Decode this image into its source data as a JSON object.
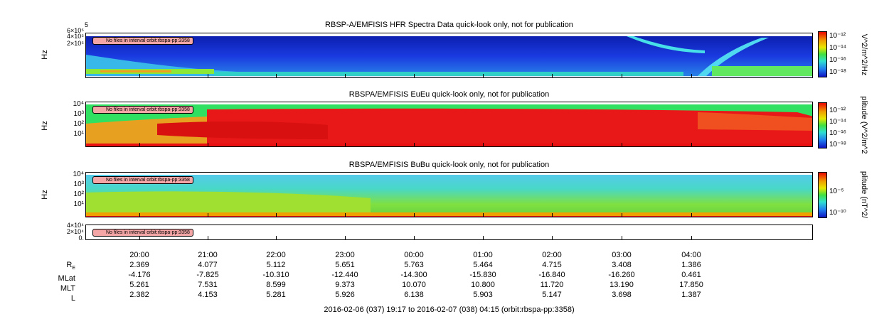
{
  "colors": {
    "spec_low": "#1a1ab0",
    "spec_mid": "#36e8c8",
    "spec_high": "#e81010",
    "notice_bg": "#f4a6a6"
  },
  "notice_text": "No files in interval orbit:rbspa-pp:3358",
  "chart_data": [
    {
      "type": "heatmap",
      "title": "RBSP-A/EMFISIS  HFR Spectra Data quick-look only, not for publication",
      "ylabel": "Hz",
      "ytick_labels": [
        "5",
        "6×10⁵",
        "4×10⁵",
        "2×10⁵"
      ],
      "colorbar_label": "V^2/m^2/Hz",
      "colorbar_ticks": [
        "10⁻¹²",
        "10⁻¹⁴",
        "10⁻¹⁶",
        "10⁻¹⁸"
      ],
      "notice": "No files in interval orbit:rbspa-pp:3358"
    },
    {
      "type": "heatmap",
      "title": "RBSPA/EMFISIS  EuEu quick-look only, not for publication",
      "ylabel": "Hz",
      "ytick_labels": [
        "10⁴",
        "10³",
        "10²",
        "10¹"
      ],
      "colorbar_label": "plitude (V^2/m^2",
      "colorbar_ticks": [
        "10⁻¹²",
        "10⁻¹⁴",
        "10⁻¹⁶",
        "10⁻¹⁸"
      ],
      "notice": "No files in interval orbit:rbspa-pp:3358"
    },
    {
      "type": "heatmap",
      "title": "RBSPA/EMFISIS  BuBu quick-look only, not for publication",
      "ylabel": "Hz",
      "ytick_labels": [
        "10⁴",
        "10³",
        "10²",
        "10¹"
      ],
      "colorbar_label": "plitude (nT^2/",
      "colorbar_ticks": [
        "10⁻⁵",
        "10⁻¹⁰"
      ],
      "notice": "No files in interval orbit:rbspa-pp:3358"
    },
    {
      "type": "line",
      "title": "",
      "ytick_labels": [
        "4×10⁴",
        "2×10⁴",
        "0."
      ],
      "notice": "No files in interval orbit:rbspa-pp:3358"
    }
  ],
  "ephemeris": {
    "times": [
      "20:00",
      "21:00",
      "22:00",
      "23:00",
      "00:00",
      "01:00",
      "02:00",
      "03:00",
      "04:00"
    ],
    "rows": [
      {
        "label": "R",
        "sub": "E",
        "values": [
          "2.369",
          "4.077",
          "5.112",
          "5.651",
          "5.763",
          "5.464",
          "4.715",
          "3.408",
          "1.386"
        ]
      },
      {
        "label": "MLat",
        "sub": "",
        "values": [
          "-4.176",
          "-7.825",
          "-10.310",
          "-12.440",
          "-14.300",
          "-15.830",
          "-16.840",
          "-16.260",
          "0.461"
        ]
      },
      {
        "label": "MLT",
        "sub": "",
        "values": [
          "5.261",
          "7.531",
          "8.599",
          "9.373",
          "10.070",
          "10.800",
          "11.720",
          "13.190",
          "17.850"
        ]
      },
      {
        "label": "L",
        "sub": "",
        "values": [
          "2.382",
          "4.153",
          "5.281",
          "5.926",
          "6.138",
          "5.903",
          "5.147",
          "3.698",
          "1.387"
        ]
      }
    ]
  },
  "footer": "2016-02-06 (037) 19:17 to 2016-02-07 (038) 04:15 (orbit:rbspa-pp:3358)"
}
